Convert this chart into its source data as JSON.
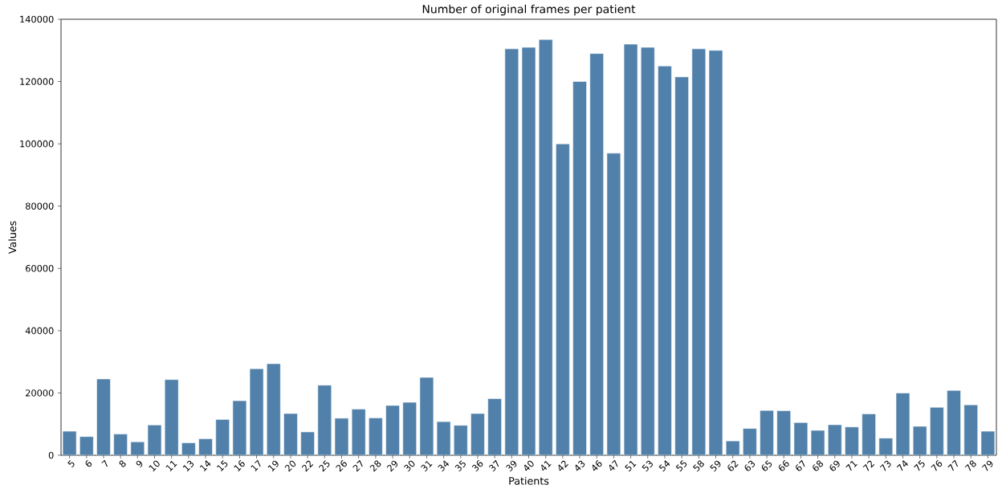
{
  "chart_data": {
    "type": "bar",
    "title": "Number of original frames per patient",
    "xlabel": "Patients",
    "ylabel": "Values",
    "categories": [
      "5",
      "6",
      "7",
      "8",
      "9",
      "10",
      "11",
      "13",
      "14",
      "15",
      "16",
      "17",
      "19",
      "20",
      "22",
      "25",
      "26",
      "27",
      "28",
      "29",
      "30",
      "31",
      "34",
      "35",
      "36",
      "37",
      "39",
      "40",
      "41",
      "42",
      "43",
      "46",
      "47",
      "51",
      "53",
      "54",
      "55",
      "58",
      "59",
      "62",
      "63",
      "65",
      "66",
      "67",
      "68",
      "69",
      "71",
      "72",
      "73",
      "74",
      "75",
      "76",
      "77",
      "78",
      "79"
    ],
    "values": [
      7700,
      6000,
      24500,
      6800,
      4300,
      9700,
      24300,
      4000,
      5300,
      11500,
      17500,
      27800,
      29400,
      13400,
      7500,
      22500,
      11900,
      14800,
      12000,
      16000,
      17000,
      25000,
      10800,
      9600,
      13400,
      18200,
      130500,
      131000,
      133500,
      100000,
      120000,
      129000,
      97000,
      132000,
      131000,
      125000,
      121500,
      130500,
      130000,
      4600,
      8600,
      14400,
      14300,
      10500,
      8000,
      9800,
      9100,
      13300,
      5500,
      20000,
      9300,
      15400,
      20800,
      16200,
      7700
    ],
    "color": "#5181aa",
    "ylim": [
      0,
      140000
    ],
    "yticks": [
      0,
      20000,
      40000,
      60000,
      80000,
      100000,
      120000,
      140000
    ],
    "grid": false
  }
}
